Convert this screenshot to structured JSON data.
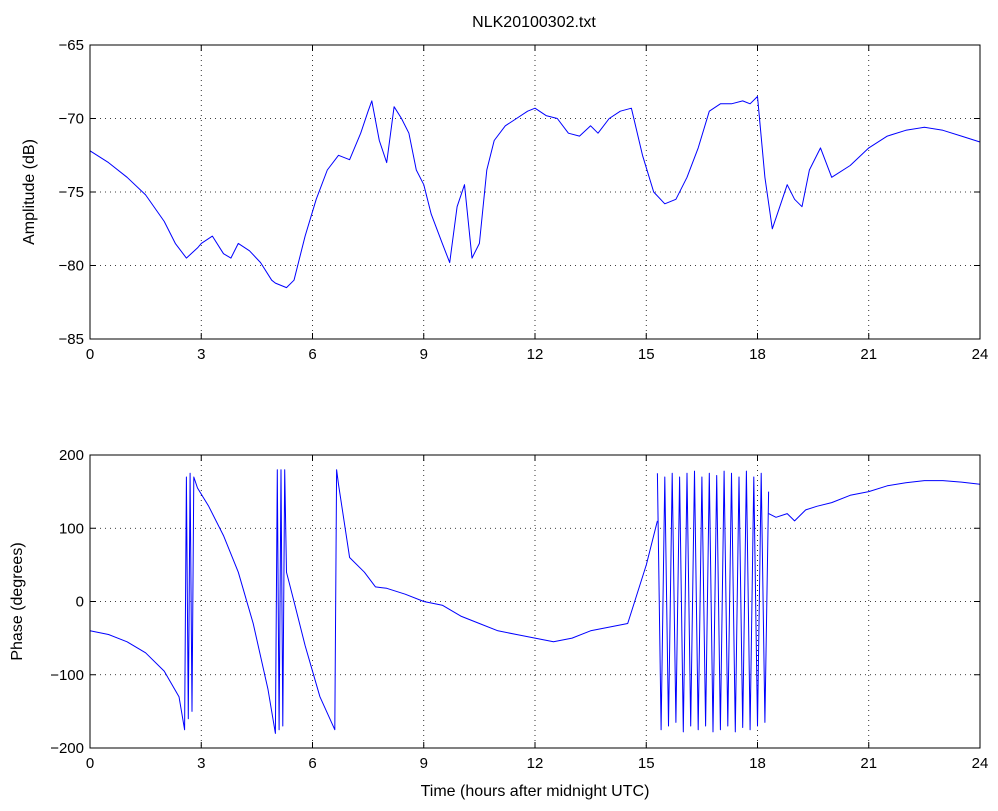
{
  "figure": {
    "title": "NLK20100302.txt"
  },
  "chart_data": [
    {
      "type": "line",
      "title": "NLK20100302.txt",
      "xlabel": "",
      "ylabel": "Amplitude (dB)",
      "xlim": [
        0,
        24
      ],
      "ylim": [
        -85,
        -65
      ],
      "xticks": [
        0,
        3,
        6,
        9,
        12,
        15,
        18,
        21,
        24
      ],
      "yticks": [
        -85,
        -80,
        -75,
        -70,
        -65
      ],
      "xtick_labels": [
        "0",
        "3",
        "6",
        "9",
        "12",
        "15",
        "18",
        "21",
        "24"
      ],
      "ytick_labels": [
        "−85",
        "−80",
        "−75",
        "−70",
        "−65"
      ],
      "grid": true,
      "color": "#0000ff",
      "series": [
        {
          "x": [
            0,
            0.5,
            1.0,
            1.5,
            2.0,
            2.3,
            2.6,
            2.9,
            3.0,
            3.3,
            3.6,
            3.8,
            4.0,
            4.3,
            4.6,
            4.9,
            5.0,
            5.3,
            5.5,
            5.8,
            6.1,
            6.4,
            6.7,
            7.0,
            7.3,
            7.5,
            7.6,
            7.8,
            8.0,
            8.2,
            8.4,
            8.6,
            8.8,
            9.0,
            9.2,
            9.5,
            9.7,
            9.9,
            10.1,
            10.3,
            10.5,
            10.7,
            10.9,
            11.2,
            11.5,
            11.8,
            12.0,
            12.3,
            12.6,
            12.9,
            13.2,
            13.5,
            13.7,
            14.0,
            14.3,
            14.6,
            14.9,
            15.2,
            15.5,
            15.8,
            16.1,
            16.4,
            16.7,
            17.0,
            17.3,
            17.6,
            17.8,
            18.0,
            18.2,
            18.4,
            18.6,
            18.8,
            19.0,
            19.2,
            19.4,
            19.7,
            20.0,
            20.5,
            21.0,
            21.5,
            22.0,
            22.5,
            23.0,
            23.5,
            24.0
          ],
          "y": [
            -72.2,
            -73.0,
            -74.0,
            -75.2,
            -77.0,
            -78.5,
            -79.5,
            -78.8,
            -78.5,
            -78.0,
            -79.2,
            -79.5,
            -78.5,
            -79.0,
            -79.8,
            -81.0,
            -81.2,
            -81.5,
            -81.0,
            -78.0,
            -75.5,
            -73.5,
            -72.5,
            -72.8,
            -71.0,
            -69.5,
            -68.8,
            -71.5,
            -73.0,
            -69.2,
            -70.0,
            -71.0,
            -73.5,
            -74.5,
            -76.5,
            -78.5,
            -79.8,
            -76.0,
            -74.5,
            -79.5,
            -78.5,
            -73.5,
            -71.5,
            -70.5,
            -70.0,
            -69.5,
            -69.3,
            -69.8,
            -70.0,
            -71.0,
            -71.2,
            -70.5,
            -71.0,
            -70.0,
            -69.5,
            -69.3,
            -72.5,
            -75.0,
            -75.8,
            -75.5,
            -74.0,
            -72.0,
            -69.5,
            -69.0,
            -69.0,
            -68.8,
            -69.0,
            -68.5,
            -74.0,
            -77.5,
            -76.0,
            -74.5,
            -75.5,
            -76.0,
            -73.5,
            -72.0,
            -74.0,
            -73.2,
            -72.0,
            -71.2,
            -70.8,
            -70.6,
            -70.8,
            -71.2,
            -71.6
          ]
        }
      ]
    },
    {
      "type": "line",
      "title": "",
      "xlabel": "Time (hours after midnight UTC)",
      "ylabel": "Phase (degrees)",
      "xlim": [
        0,
        24
      ],
      "ylim": [
        -200,
        200
      ],
      "xticks": [
        0,
        3,
        6,
        9,
        12,
        15,
        18,
        21,
        24
      ],
      "yticks": [
        -200,
        -100,
        0,
        100,
        200
      ],
      "xtick_labels": [
        "0",
        "3",
        "6",
        "9",
        "12",
        "15",
        "18",
        "21",
        "24"
      ],
      "ytick_labels": [
        "−200",
        "−100",
        "0",
        "100",
        "200"
      ],
      "grid": true,
      "color": "#0000ff",
      "series": [
        {
          "x": [
            0,
            0.5,
            1.0,
            1.5,
            2.0,
            2.4,
            2.55,
            2.6,
            2.65,
            2.7,
            2.75,
            2.8,
            2.9,
            3.2,
            3.6,
            4.0,
            4.4,
            4.8,
            5.0,
            5.05,
            5.1,
            5.15,
            5.2,
            5.25,
            5.3,
            5.5,
            5.8,
            6.2,
            6.6,
            6.65,
            6.7,
            7.0,
            7.4,
            7.7,
            8.0,
            8.5,
            9.0,
            9.5,
            10.0,
            10.5,
            11.0,
            11.5,
            12.0,
            12.5,
            13.0,
            13.5,
            14.0,
            14.5,
            15.0,
            15.3
          ],
          "y": [
            -40,
            -45,
            -55,
            -70,
            -95,
            -130,
            -175,
            170,
            -160,
            175,
            -150,
            170,
            155,
            130,
            90,
            40,
            -30,
            -120,
            -180,
            180,
            -175,
            180,
            -170,
            180,
            40,
            0,
            -60,
            -130,
            -175,
            180,
            160,
            60,
            40,
            20,
            18,
            10,
            0,
            -5,
            -20,
            -30,
            -40,
            -45,
            -50,
            -55,
            -50,
            -40,
            -35,
            -30,
            50,
            110
          ]
        },
        {
          "name": "",
          "x": [
            15.3,
            15.4,
            15.5,
            15.6,
            15.7,
            15.8,
            15.9,
            16.0,
            16.1,
            16.2,
            16.3,
            16.4,
            16.5,
            16.6,
            16.7,
            16.8,
            16.9,
            17.0,
            17.1,
            17.2,
            17.3,
            17.4,
            17.5,
            17.6,
            17.7,
            17.8,
            17.9,
            18.0,
            18.1,
            18.2,
            18.3
          ],
          "y": [
            175,
            -175,
            170,
            -170,
            175,
            -165,
            170,
            -178,
            175,
            -170,
            178,
            -175,
            170,
            -170,
            175,
            -178,
            172,
            -175,
            178,
            -170,
            175,
            -178,
            170,
            -172,
            178,
            -175,
            170,
            -170,
            175,
            -165,
            150
          ]
        },
        {
          "name": "",
          "x": [
            18.3,
            18.5,
            18.8,
            19.0,
            19.3,
            19.6,
            20.0,
            20.5,
            21.0,
            21.5,
            22.0,
            22.5,
            23.0,
            23.5,
            24.0
          ],
          "y": [
            120,
            115,
            120,
            110,
            125,
            130,
            135,
            145,
            150,
            158,
            162,
            165,
            165,
            163,
            160
          ]
        }
      ]
    }
  ]
}
